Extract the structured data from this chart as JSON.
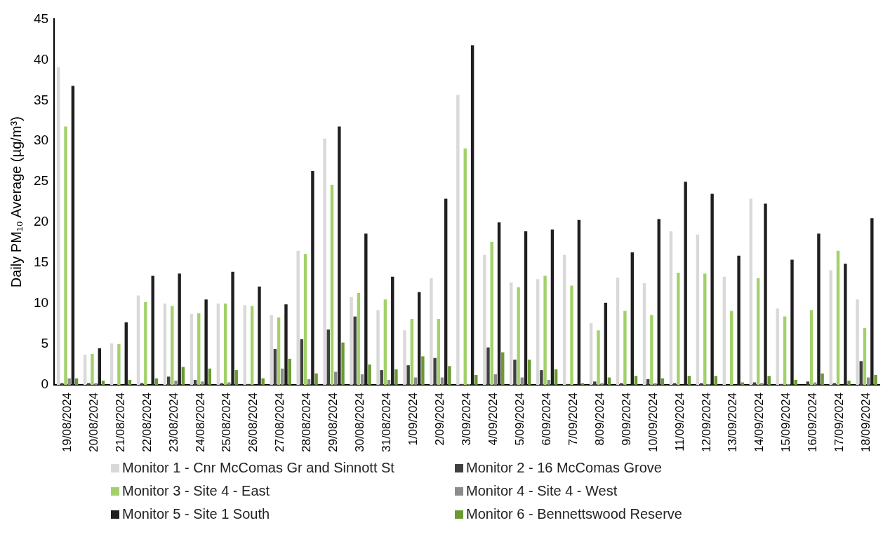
{
  "chart_data": {
    "type": "bar",
    "ylabel": "Daily PM₁₀ Average (µg/m³)",
    "categories": [
      "19/08/2024",
      "20/08/2024",
      "21/08/2024",
      "22/08/2024",
      "23/08/2024",
      "24/08/2024",
      "25/08/2024",
      "26/08/2024",
      "27/08/2024",
      "28/08/2024",
      "29/08/2024",
      "30/08/2024",
      "31/08/2024",
      "1/09/2024",
      "2/09/2024",
      "3/09/2024",
      "4/09/2024",
      "5/09/2024",
      "6/09/2024",
      "7/09/2024",
      "8/09/2024",
      "9/09/2024",
      "10/09/2024",
      "11/09/2024",
      "12/09/2024",
      "13/09/2024",
      "14/09/2024",
      "15/09/2024",
      "16/09/2024",
      "17/09/2024",
      "18/09/2024"
    ],
    "series": [
      {
        "name": "Monitor 1 - Cnr McComas Gr and Sinnott St",
        "color": "#d9d9d9",
        "values": [
          39.1,
          3.7,
          5.1,
          11.0,
          10.0,
          8.7,
          10.0,
          9.8,
          8.6,
          16.5,
          30.3,
          10.8,
          9.2,
          6.7,
          13.1,
          35.7,
          16.0,
          12.6,
          13.0,
          16.0,
          7.6,
          13.2,
          12.5,
          18.9,
          18.5,
          13.3,
          22.9,
          9.4,
          0,
          14.1,
          10.5
        ]
      },
      {
        "name": "Monitor 2 - 16 McComas Grove",
        "color": "#404040",
        "values": [
          0.2,
          0.2,
          0,
          0.2,
          1.0,
          0.6,
          0.2,
          0.1,
          4.4,
          5.6,
          6.8,
          8.4,
          1.8,
          2.4,
          3.3,
          0.1,
          4.6,
          3.1,
          1.8,
          0.1,
          0.4,
          0.2,
          0.7,
          0.2,
          0.2,
          0,
          0.3,
          0.1,
          0.4,
          0.2,
          2.9
        ]
      },
      {
        "name": "Monitor 3 - Site 4 - East",
        "color": "#a2d16a",
        "values": [
          31.8,
          3.8,
          5.0,
          10.2,
          9.7,
          8.8,
          10.0,
          9.7,
          8.3,
          16.1,
          24.6,
          11.3,
          10.5,
          8.1,
          8.1,
          29.1,
          17.6,
          12.0,
          13.4,
          12.2,
          6.7,
          9.1,
          8.6,
          13.8,
          13.7,
          9.1,
          13.1,
          8.4,
          9.2,
          16.5,
          7.0
        ]
      },
      {
        "name": "Monitor 4 - Site 4 - West",
        "color": "#8c8c8c",
        "values": [
          0.8,
          0.2,
          0,
          0,
          0.5,
          0.4,
          0.3,
          0,
          2.0,
          0.7,
          1.6,
          1.3,
          0.6,
          0.9,
          0.9,
          0.1,
          1.3,
          0.9,
          0.6,
          0,
          0.2,
          0,
          0.2,
          0,
          0.1,
          0,
          0.2,
          0.1,
          0.3,
          0,
          0.9
        ]
      },
      {
        "name": "Monitor 5 - Site 1 South",
        "color": "#1f1f1f",
        "values": [
          36.8,
          4.5,
          7.7,
          13.4,
          13.7,
          10.5,
          13.9,
          12.1,
          9.9,
          26.3,
          31.8,
          18.6,
          13.3,
          11.4,
          22.9,
          41.8,
          20.0,
          18.9,
          19.1,
          20.3,
          10.1,
          16.3,
          20.4,
          25.0,
          23.5,
          15.9,
          22.3,
          15.4,
          18.6,
          14.9,
          20.5
        ]
      },
      {
        "name": "Monitor 6 - Bennettswood Reserve",
        "color": "#6a9a34",
        "values": [
          0.8,
          0.5,
          0.6,
          0.8,
          2.2,
          2.0,
          1.8,
          0.8,
          3.2,
          1.4,
          5.2,
          2.5,
          1.9,
          3.5,
          2.3,
          1.2,
          4.0,
          3.1,
          1.9,
          0.2,
          0.9,
          1.1,
          0.8,
          1.1,
          1.1,
          0.3,
          1.1,
          0.6,
          1.4,
          0.5,
          1.2
        ]
      }
    ],
    "ylim": [
      0,
      45
    ],
    "yticks": [
      0,
      5,
      10,
      15,
      20,
      25,
      30,
      35,
      40,
      45
    ],
    "grid": false,
    "legend": "bottom"
  }
}
